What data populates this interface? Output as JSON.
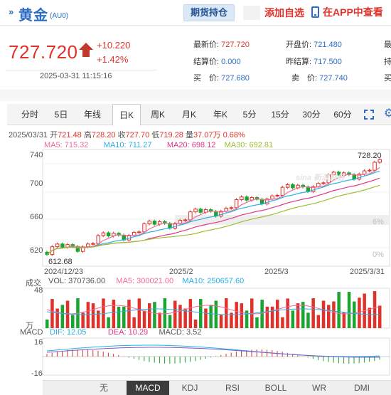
{
  "header": {
    "name": "黄金",
    "code": "(AU0)",
    "position_button": "期货持仓",
    "add_watchlist": "添加自选",
    "app_view": "在APP中查看"
  },
  "quote": {
    "price": "727.720",
    "change": "+10.220",
    "change_pct": "+1.42%",
    "timestamp": "2025-03-31 11:15:16"
  },
  "stats": [
    {
      "label": "最新价:",
      "value": "727.720"
    },
    {
      "label": "开盘价:",
      "value": "721.480"
    },
    {
      "label": "结算价:",
      "value": "0.000"
    },
    {
      "label": "昨结算:",
      "value": "717.500"
    },
    {
      "label": "买　价:",
      "value": "727.680"
    },
    {
      "label": "卖　价:",
      "value": "727.740"
    }
  ],
  "stats_clipped": [
    "最",
    "持",
    "买"
  ],
  "tabs": [
    "分时",
    "5日",
    "年线",
    "日K",
    "周K",
    "月K",
    "年K",
    "5分",
    "15分",
    "30分",
    "60分"
  ],
  "active_tab": "日K",
  "ohlc_line": {
    "date": "2025/03/31",
    "open_label": "开",
    "open": "721.48",
    "high_label": "高",
    "high": "728.20",
    "close_label": "收",
    "close": "727.70",
    "low_label": "低",
    "low": "719.28",
    "vol_label": "量",
    "vol": "37.07万",
    "pct": "0.68%"
  },
  "ma": {
    "ma5": "MA5: 715.32",
    "ma10": "MA10: 711.27",
    "ma20": "MA20: 698.12",
    "ma30": "MA30: 692.81"
  },
  "price_axis": {
    "ticks": [
      "740",
      "700",
      "660",
      "620"
    ],
    "pct_ticks": [
      "6%",
      "0%"
    ],
    "max_label": "728.20",
    "min_label": "612.68"
  },
  "date_axis": [
    "2024/12/23",
    "2025/2",
    "2025/3",
    "2025/3/31"
  ],
  "watermark": "sina 新浪财经",
  "volume": {
    "label": "成交",
    "unit": "万",
    "vol": "VOL: 370736.00",
    "ma5": "MA5: 300021.00",
    "ma10": "MA10: 250657.60",
    "top_tick": "48"
  },
  "macd": {
    "label": "MACD",
    "dif": "DIF: 12.05",
    "dea": "DEA: 10.29",
    "macd": "MACD: 3.52",
    "top_tick": "16",
    "bottom_tick": "-16"
  },
  "indicator_tabs": [
    "无",
    "MACD",
    "KDJ",
    "RSI",
    "BOLL",
    "WR",
    "DMI"
  ],
  "active_indicator": "MACD",
  "colors": {
    "up": "#e0322a",
    "down": "#1aa531",
    "ma5": "#f06a9a",
    "ma10": "#2ab0e6",
    "ma20": "#e0358a",
    "ma30": "#9dbf2e",
    "link": "#2c6cc4"
  }
}
